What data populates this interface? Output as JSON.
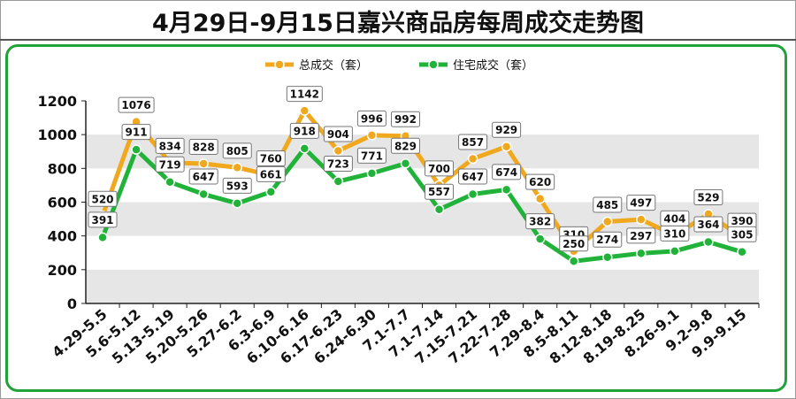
{
  "chart_data": {
    "type": "line",
    "title": "4月29日-9月15日嘉兴商品房每周成交走势图",
    "categories": [
      "4.29-5.5",
      "5.6-5.12",
      "5.13-5.19",
      "5.20-5.26",
      "5.27-6.2",
      "6.3-6.9",
      "6.10-6.16",
      "6.17-6.23",
      "6.24-6.30",
      "7.1-7.7",
      "7.1-7.14",
      "7.15-7.21",
      "7.22-7.28",
      "7.29-8.4",
      "8.5-8.11",
      "8.12-8.18",
      "8.19-8.25",
      "8.26-9.1",
      "9.2-9.8",
      "9.9-9.15"
    ],
    "series": [
      {
        "name": "总成交（套）",
        "color": "#f0a81e",
        "values": [
          520,
          1076,
          834,
          828,
          805,
          760,
          1142,
          904,
          996,
          992,
          700,
          857,
          929,
          620,
          310,
          485,
          497,
          404,
          529,
          390
        ]
      },
      {
        "name": "住宅成交（套）",
        "color": "#21b339",
        "values": [
          391,
          911,
          719,
          647,
          593,
          661,
          918,
          723,
          771,
          829,
          557,
          647,
          674,
          382,
          250,
          274,
          297,
          310,
          364,
          305
        ]
      }
    ],
    "ylim": [
      0,
      1200
    ],
    "yticks": [
      "0",
      "200",
      "400",
      "600",
      "800",
      "1000",
      "1200"
    ],
    "xlabel": "",
    "ylabel": "",
    "grid": "horizontal bands",
    "legend_position": "top-center"
  },
  "colors": {
    "band": "#e6e6e6",
    "frame": "#21a33a"
  }
}
